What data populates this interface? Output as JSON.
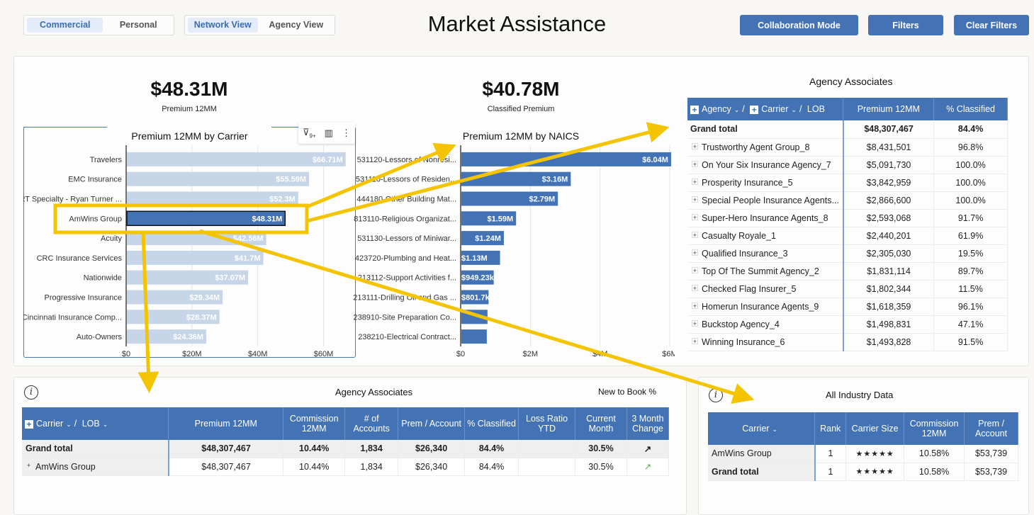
{
  "header": {
    "title": "Market Assistance",
    "segment1": [
      "Commercial",
      "Personal"
    ],
    "segment2": [
      "Network View",
      "Agency View"
    ],
    "buttons": {
      "collab": "Collaboration Mode",
      "filters": "Filters",
      "clear": "Clear Filters"
    }
  },
  "kpis": [
    {
      "value": "$48.31M",
      "label": "Premium 12MM"
    },
    {
      "value": "$40.78M",
      "label": "Classified Premium"
    }
  ],
  "chart_data": [
    {
      "type": "bar",
      "title": "Premium 12MM by Carrier",
      "orientation": "horizontal",
      "categories": [
        "Travelers",
        "EMC Insurance",
        "RT Specialty - Ryan Turner ...",
        "AmWins Group",
        "Acuity",
        "CRC Insurance Services",
        "Nationwide",
        "Progressive Insurance",
        "Cincinnati Insurance Comp...",
        "Auto-Owners"
      ],
      "values": [
        66.71,
        55.59,
        52.3,
        48.31,
        42.56,
        41.7,
        37.07,
        29.34,
        28.37,
        24.36
      ],
      "labels": [
        "$66.71M",
        "$55.59M",
        "$52.3M",
        "$48.31M",
        "$42.56M",
        "$41.7M",
        "$37.07M",
        "$29.34M",
        "$28.37M",
        "$24.36M"
      ],
      "selected": "AmWins Group",
      "unit": "M",
      "xlim": [
        0,
        70
      ],
      "xticks": [
        0,
        20,
        40,
        60
      ],
      "xtick_labels": [
        "$0",
        "$20M",
        "$40M",
        "$60M"
      ],
      "grid": true
    },
    {
      "type": "bar",
      "title": "Premium 12MM by NAICS",
      "orientation": "horizontal",
      "categories": [
        "531120-Lessors of Nonresi...",
        "531110-Lessors of Residen...",
        "444180-Other Building Mat...",
        "813110-Religious Organizat...",
        "531130-Lessors of Miniwar...",
        "423720-Plumbing and Heat...",
        "213112-Support Activities f...",
        "213111-Drilling Oil and Gas ...",
        "238910-Site Preparation Co...",
        "238210-Electrical Contract..."
      ],
      "values": [
        6.04,
        3.16,
        2.79,
        1.59,
        1.24,
        1.13,
        0.94923,
        0.8017,
        0.77,
        0.75
      ],
      "labels": [
        "$6.04M",
        "$3.16M",
        "$2.79M",
        "$1.59M",
        "$1.24M",
        "$1.13M",
        "$949.23k",
        "$801.7k",
        "",
        ""
      ],
      "unit": "M",
      "xlim": [
        0,
        6
      ],
      "xticks": [
        0,
        2,
        4,
        6
      ],
      "xtick_labels": [
        "$0",
        "$2M",
        "$4M",
        "$6M"
      ],
      "grid": true
    }
  ],
  "agency_table": {
    "title": "Agency Associates",
    "header": {
      "agency": "Agency",
      "carrier": "Carrier",
      "lob": "LOB",
      "premium": "Premium 12MM",
      "classified": "% Classified"
    },
    "total": {
      "name": "Grand total",
      "premium": "$48,307,467",
      "classified": "84.4%"
    },
    "rows": [
      {
        "name": "Trustworthy Agent Group_8",
        "premium": "$8,431,501",
        "classified": "96.8%"
      },
      {
        "name": "On Your Six Insurance Agency_7",
        "premium": "$5,091,730",
        "classified": "100.0%"
      },
      {
        "name": "Prosperity Insurance_5",
        "premium": "$3,842,959",
        "classified": "100.0%"
      },
      {
        "name": "Special People Insurance Agents...",
        "premium": "$2,866,600",
        "classified": "100.0%"
      },
      {
        "name": "Super-Hero Insurance Agents_8",
        "premium": "$2,593,068",
        "classified": "91.7%"
      },
      {
        "name": "Casualty Royale_1",
        "premium": "$2,440,201",
        "classified": "61.9%"
      },
      {
        "name": "Qualified Insurance_3",
        "premium": "$2,305,030",
        "classified": "19.5%"
      },
      {
        "name": "Top Of The Summit Agency_2",
        "premium": "$1,831,114",
        "classified": "89.7%"
      },
      {
        "name": "Checked Flag Insurer_5",
        "premium": "$1,802,344",
        "classified": "11.5%"
      },
      {
        "name": "Homerun Insurance Agents_9",
        "premium": "$1,618,359",
        "classified": "96.1%"
      },
      {
        "name": "Buckstop Agency_4",
        "premium": "$1,498,831",
        "classified": "47.1%"
      },
      {
        "name": "Winning Insurance_6",
        "premium": "$1,493,828",
        "classified": "91.5%"
      }
    ]
  },
  "carrier_table": {
    "title": "Agency Associates",
    "side_label": "New to Book %",
    "header": {
      "carrier": "Carrier",
      "lob": "LOB",
      "cols": [
        "Premium 12MM",
        "Commission 12MM",
        "# of Accounts",
        "Prem / Account",
        "% Classified",
        "Loss Ratio YTD",
        "Current Month",
        "3 Month Change"
      ]
    },
    "rows": [
      {
        "name": "Grand total",
        "bold": true,
        "cells": [
          "$48,307,467",
          "10.44%",
          "1,834",
          "$26,340",
          "84.4%",
          "",
          "30.5%",
          "↗"
        ]
      },
      {
        "name": "AmWins Group",
        "bold": false,
        "cells": [
          "$48,307,467",
          "10.44%",
          "1,834",
          "$26,340",
          "84.4%",
          "",
          "30.5%",
          "↗"
        ]
      }
    ]
  },
  "industry_table": {
    "title": "All Industry Data",
    "header": [
      "Carrier",
      "Rank",
      "Carrier Size",
      "Commission 12MM",
      "Prem / Account"
    ],
    "rows": [
      {
        "name": "AmWins Group",
        "bold": false,
        "cells": [
          "1",
          "★★★★★",
          "10.58%",
          "$53,739"
        ]
      },
      {
        "name": "Grand total",
        "bold": true,
        "cells": [
          "1",
          "★★★★★",
          "10.58%",
          "$53,739"
        ]
      }
    ]
  },
  "colors": {
    "accent": "#4473b5",
    "bar_light": "#c6d5e8",
    "annotation": "#f5c400"
  }
}
